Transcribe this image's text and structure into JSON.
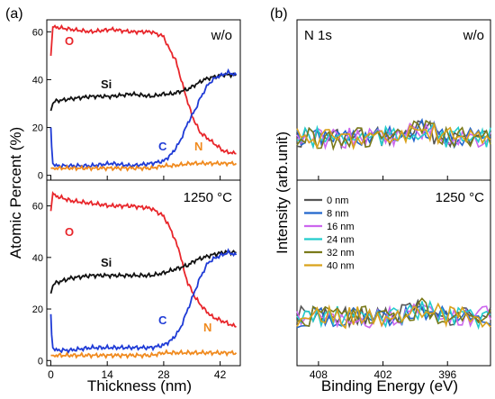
{
  "panels": {
    "a_label": "(a)",
    "b_label": "(b)",
    "a_ylabel": "Atomic Percent (%)",
    "a_xlabel": "Thickness (nm)",
    "b_ylabel": "Intensity (arb.unit)",
    "b_xlabel": "Binding Energy (eV)",
    "cond_top": "w/o",
    "cond_bottom": "1250 °C",
    "spectrum_label": "N 1s",
    "a_xticks": [
      "0",
      "14",
      "28",
      "42"
    ],
    "a_yticks": [
      "0",
      "20",
      "40",
      "60"
    ],
    "b_xticks": [
      "408",
      "402",
      "396"
    ]
  },
  "series_labels": {
    "O": "O",
    "Si": "Si",
    "C": "C",
    "N": "N"
  },
  "colors": {
    "O": "#e8262b",
    "Si": "#111111",
    "C": "#1f3bd6",
    "N": "#f08a1e",
    "0 nm": "#555555",
    "8 nm": "#2266cc",
    "16 nm": "#cc66ee",
    "24 nm": "#22cccc",
    "32 nm": "#7a7a1a",
    "40 nm": "#d9a21b"
  },
  "legend": [
    "0 nm",
    "8 nm",
    "16 nm",
    "24 nm",
    "32 nm",
    "40 nm"
  ],
  "chart_data": [
    {
      "type": "line",
      "panel": "a-top",
      "xlabel": "Thickness (nm)",
      "ylabel": "Atomic Percent (%)",
      "xlim": [
        -1,
        47
      ],
      "ylim": [
        -2,
        65
      ],
      "annotation": "w/o",
      "series": [
        {
          "name": "O",
          "x": [
            0,
            0.5,
            1,
            5,
            10,
            15,
            20,
            25,
            28,
            29,
            31,
            32,
            33,
            35,
            37,
            40,
            43,
            46
          ],
          "y": [
            50,
            62,
            62,
            61,
            60,
            61,
            60,
            60,
            58,
            54,
            48,
            42,
            36,
            25,
            18,
            14,
            10,
            9
          ]
        },
        {
          "name": "Si",
          "x": [
            0,
            0.5,
            1,
            5,
            10,
            15,
            20,
            25,
            28,
            30,
            32,
            34,
            36,
            38,
            40,
            43,
            46
          ],
          "y": [
            27,
            30,
            31,
            32,
            33,
            33,
            34,
            33,
            34,
            34,
            35,
            36,
            38,
            40,
            41,
            42,
            42
          ]
        },
        {
          "name": "C",
          "x": [
            0,
            0.2,
            0.5,
            1,
            5,
            10,
            15,
            20,
            25,
            28,
            30,
            32,
            33,
            34,
            35,
            36,
            37,
            38,
            39,
            41,
            44,
            46
          ],
          "y": [
            20,
            12,
            5,
            4,
            4,
            4,
            5,
            4,
            5,
            6,
            9,
            14,
            18,
            22,
            25,
            28,
            32,
            35,
            38,
            41,
            43,
            42
          ]
        },
        {
          "name": "N",
          "x": [
            0,
            5,
            10,
            15,
            20,
            25,
            28,
            30,
            35,
            40,
            46
          ],
          "y": [
            3,
            3,
            3,
            3,
            3,
            3,
            4,
            4,
            5,
            5,
            5
          ]
        }
      ]
    },
    {
      "type": "line",
      "panel": "a-bottom",
      "xlabel": "Thickness (nm)",
      "ylabel": "Atomic Percent (%)",
      "xlim": [
        -1,
        47
      ],
      "ylim": [
        -2,
        70
      ],
      "annotation": "1250 °C",
      "series": [
        {
          "name": "O",
          "x": [
            0,
            0.5,
            1,
            5,
            10,
            15,
            20,
            25,
            28,
            30,
            32,
            33,
            34,
            36,
            38,
            40,
            43,
            46
          ],
          "y": [
            58,
            65,
            64,
            62,
            61,
            60,
            60,
            59,
            56,
            50,
            42,
            35,
            30,
            24,
            20,
            17,
            15,
            13
          ]
        },
        {
          "name": "Si",
          "x": [
            0,
            0.5,
            1,
            5,
            10,
            15,
            20,
            25,
            28,
            30,
            32,
            34,
            36,
            38,
            40,
            43,
            46
          ],
          "y": [
            26,
            29,
            30,
            32,
            33,
            33,
            33,
            33,
            34,
            35,
            36,
            37,
            39,
            40,
            41,
            42,
            42
          ]
        },
        {
          "name": "C",
          "x": [
            0,
            0.2,
            0.5,
            1,
            5,
            10,
            15,
            20,
            25,
            28,
            30,
            32,
            33,
            34,
            35,
            36,
            37,
            38,
            39,
            41,
            44,
            46
          ],
          "y": [
            18,
            10,
            5,
            4,
            4,
            5,
            5,
            5,
            5,
            6,
            8,
            12,
            16,
            20,
            24,
            28,
            32,
            35,
            38,
            40,
            42,
            41
          ]
        },
        {
          "name": "N",
          "x": [
            0,
            5,
            10,
            15,
            20,
            25,
            28,
            30,
            35,
            40,
            46
          ],
          "y": [
            2,
            2,
            2,
            2,
            2,
            2,
            3,
            3,
            3,
            3,
            3
          ]
        }
      ]
    },
    {
      "type": "line",
      "panel": "b-top",
      "xlabel": "Binding Energy (eV)",
      "ylabel": "Intensity (arb.unit)",
      "xlim": [
        410,
        392
      ],
      "annotation": "N 1s / w/o",
      "series_names": [
        "0 nm",
        "8 nm",
        "16 nm",
        "24 nm",
        "32 nm",
        "40 nm"
      ],
      "mean_level": 0.2,
      "peak_center_eV": 398.5
    },
    {
      "type": "line",
      "panel": "b-bottom",
      "xlabel": "Binding Energy (eV)",
      "ylabel": "Intensity (arb.unit)",
      "xlim": [
        410,
        392
      ],
      "annotation": "1250 °C",
      "series_names": [
        "0 nm",
        "8 nm",
        "16 nm",
        "24 nm",
        "32 nm",
        "40 nm"
      ],
      "mean_level": 0.2,
      "peak_center_eV": 398.5
    }
  ]
}
